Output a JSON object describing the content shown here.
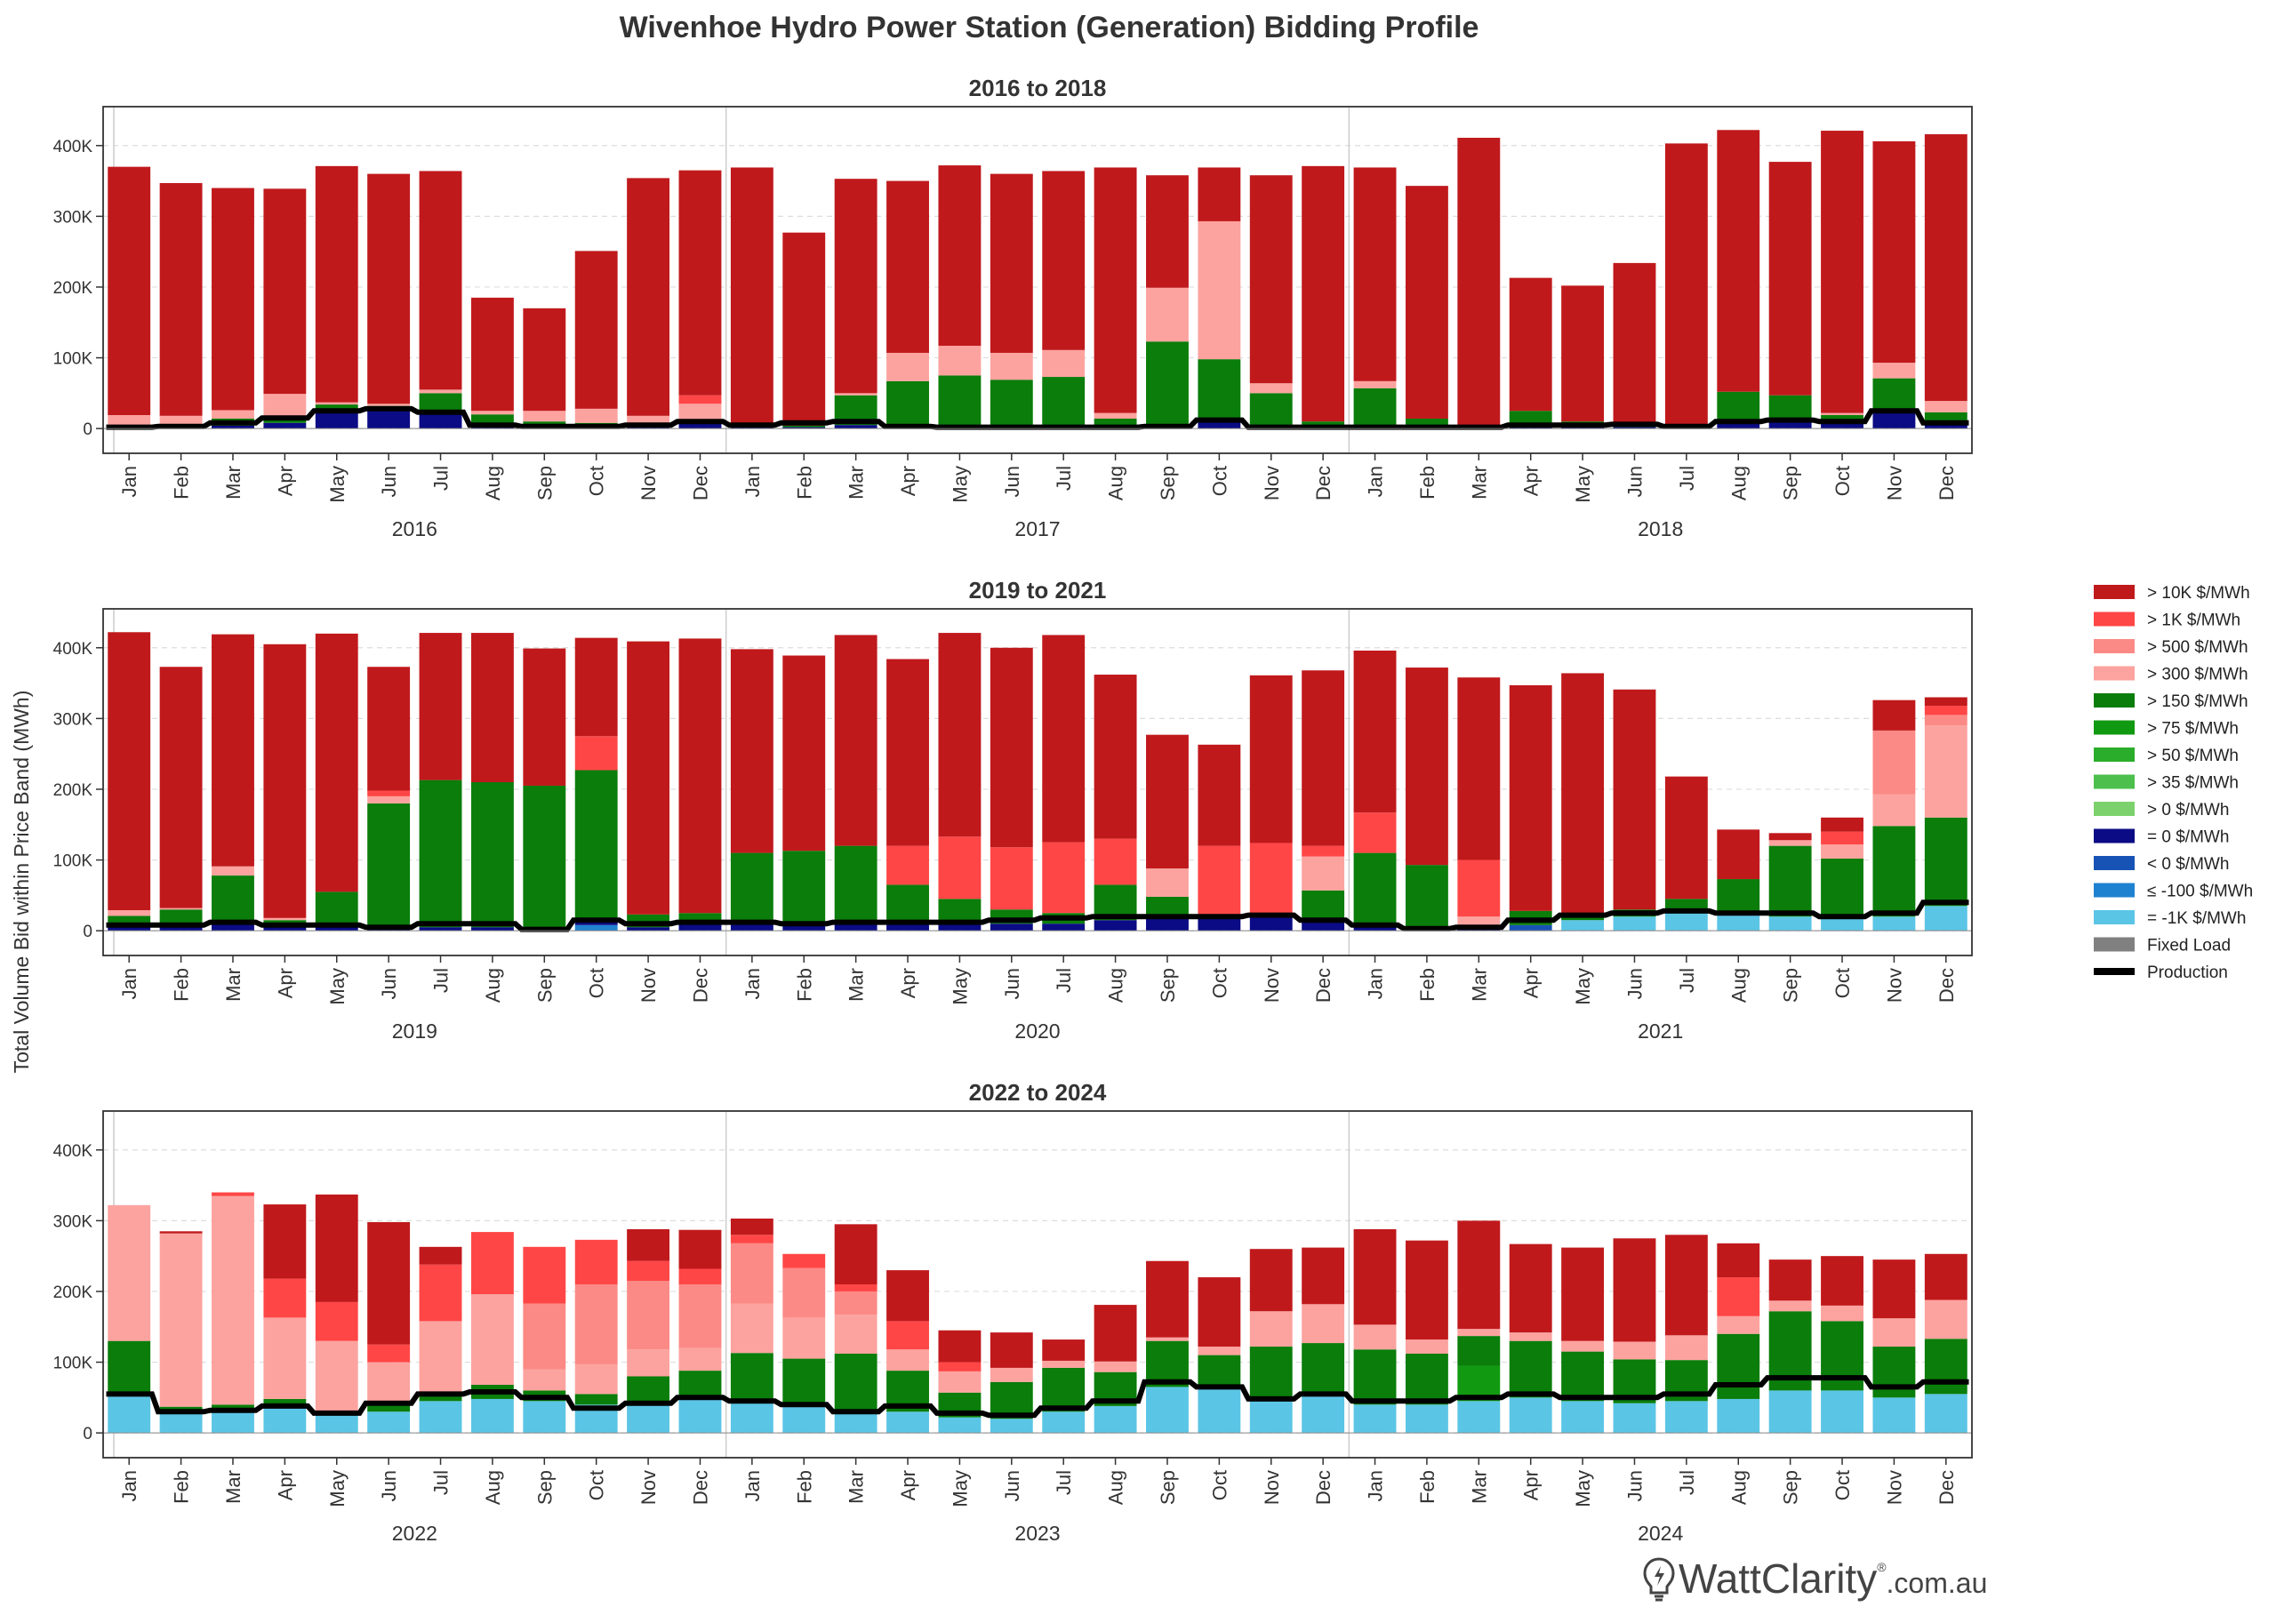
{
  "title": "Wivenhoe Hydro Power Station (Generation) Bidding Profile",
  "ylabel": "Total Volume Bid within Price Band (MWh)",
  "months": [
    "Jan",
    "Feb",
    "Mar",
    "Apr",
    "May",
    "Jun",
    "Jul",
    "Aug",
    "Sep",
    "Oct",
    "Nov",
    "Dec"
  ],
  "yticks": [
    "0",
    "100K",
    "200K",
    "300K",
    "400K"
  ],
  "legend": [
    {
      "label": "> 10K $/MWh",
      "color": "#c0191c"
    },
    {
      "label": "> 1K $/MWh",
      "color": "#ff4646"
    },
    {
      "label": "> 500 $/MWh",
      "color": "#fb8a86"
    },
    {
      "label": "> 300 $/MWh",
      "color": "#fca39f"
    },
    {
      "label": "> 150 $/MWh",
      "color": "#0a7d0a"
    },
    {
      "label": "> 75 $/MWh",
      "color": "#119911"
    },
    {
      "label": "> 50 $/MWh",
      "color": "#2aad2a"
    },
    {
      "label": "> 35 $/MWh",
      "color": "#4cbf4c"
    },
    {
      "label": "> 0 $/MWh",
      "color": "#7dd16d"
    },
    {
      "label": "= 0 $/MWh",
      "color": "#0b0b85"
    },
    {
      "label": "< 0 $/MWh",
      "color": "#1753b5"
    },
    {
      "label": "≤ -100 $/MWh",
      "color": "#1f82d0"
    },
    {
      "label": "= -1K $/MWh",
      "color": "#5bc5e5"
    },
    {
      "label": "Fixed Load",
      "color": "#808080"
    },
    {
      "label": "Production",
      "color": "#000000"
    }
  ],
  "brand": {
    "name": "WattClarity",
    "suffix": ".com.au",
    "reg": "®"
  },
  "chart_data": [
    {
      "type": "bar",
      "title": "2016 to 2018",
      "years": [
        "2016",
        "2017",
        "2018"
      ],
      "ylim": [
        -35000,
        455000
      ],
      "series_order": [
        "neg1k",
        "le100",
        "lt0",
        "eq0",
        "gt0",
        "gt35",
        "gt50",
        "gt75",
        "gt150",
        "gt300",
        "gt500",
        "gt1k",
        "gt10k"
      ],
      "bars": [
        {
          "eq0": 2000,
          "gt150": 3000,
          "gt300": 14000,
          "gt10k": 351000
        },
        {
          "eq0": 2000,
          "gt150": 3000,
          "gt300": 13000,
          "gt10k": 329000
        },
        {
          "eq0": 4000,
          "gt150": 10000,
          "gt300": 12000,
          "gt10k": 314000
        },
        {
          "eq0": 8000,
          "gt150": 8000,
          "gt300": 33000,
          "gt10k": 290000
        },
        {
          "eq0": 28000,
          "gt150": 6000,
          "gt300": 3000,
          "gt10k": 334000
        },
        {
          "eq0": 30000,
          "gt150": 2000,
          "gt300": 3000,
          "gt10k": 325000
        },
        {
          "eq0": 20000,
          "gt150": 30000,
          "gt300": 5000,
          "gt10k": 309000
        },
        {
          "eq0": 3000,
          "gt150": 17000,
          "gt300": 5000,
          "gt10k": 160000
        },
        {
          "eq0": 3000,
          "gt150": 7000,
          "gt300": 15000,
          "gt10k": 145000
        },
        {
          "eq0": 3000,
          "gt150": 5000,
          "gt300": 20000,
          "gt10k": 223000
        },
        {
          "eq0": 3000,
          "gt150": 5000,
          "gt300": 10000,
          "gt10k": 336000
        },
        {
          "eq0": 8000,
          "gt150": 5000,
          "gt300": 22000,
          "gt1k": 12000,
          "gt10k": 318000
        },
        {
          "eq0": 2000,
          "gt150": 2000,
          "gt10k": 365000
        },
        {
          "eq0": 2000,
          "gt150": 2000,
          "gt10k": 273000
        },
        {
          "eq0": 5000,
          "gt150": 42000,
          "gt300": 3000,
          "gt10k": 303000
        },
        {
          "eq0": 2000,
          "gt150": 65000,
          "gt300": 40000,
          "gt10k": 243000
        },
        {
          "eq0": 2000,
          "gt150": 73000,
          "gt300": 42000,
          "gt10k": 255000
        },
        {
          "eq0": 2000,
          "gt150": 67000,
          "gt300": 38000,
          "gt10k": 253000
        },
        {
          "eq0": 2000,
          "gt150": 71000,
          "gt300": 38000,
          "gt10k": 253000
        },
        {
          "eq0": 2000,
          "gt150": 12000,
          "gt300": 8000,
          "gt10k": 347000
        },
        {
          "eq0": 2000,
          "gt150": 121000,
          "gt300": 76000,
          "gt10k": 159000
        },
        {
          "eq0": 12000,
          "gt150": 86000,
          "gt300": 195000,
          "gt10k": 76000
        },
        {
          "eq0": 2000,
          "gt150": 48000,
          "gt300": 14000,
          "gt10k": 294000
        },
        {
          "eq0": 2000,
          "gt150": 8000,
          "gt10k": 361000
        },
        {
          "eq0": 2000,
          "gt150": 55000,
          "gt300": 10000,
          "gt10k": 302000
        },
        {
          "eq0": 2000,
          "gt150": 12000,
          "gt10k": 329000
        },
        {
          "eq0": 2000,
          "gt10k": 409000
        },
        {
          "eq0": 5000,
          "gt150": 20000,
          "gt10k": 188000
        },
        {
          "eq0": 2000,
          "gt150": 8000,
          "gt10k": 192000
        },
        {
          "eq0": 2000,
          "gt150": 5000,
          "gt10k": 227000
        },
        {
          "eq0": 2000,
          "gt10k": 401000
        },
        {
          "eq0": 10000,
          "gt150": 42000,
          "gt10k": 370000
        },
        {
          "eq0": 10000,
          "gt150": 37000,
          "gt10k": 330000
        },
        {
          "eq0": 12000,
          "gt150": 7000,
          "gt300": 3000,
          "gt10k": 399000
        },
        {
          "eq0": 25000,
          "gt150": 46000,
          "gt300": 22000,
          "gt10k": 313000
        },
        {
          "eq0": 8000,
          "gt150": 15000,
          "gt300": 16000,
          "gt10k": 377000
        }
      ],
      "production": [
        2000,
        3000,
        8000,
        15000,
        25000,
        28000,
        23000,
        5000,
        3000,
        3000,
        5000,
        10000,
        5000,
        8000,
        10000,
        3000,
        2000,
        2000,
        2000,
        2000,
        3000,
        12000,
        2000,
        2000,
        2000,
        2000,
        2000,
        5000,
        5000,
        6000,
        3000,
        10000,
        12000,
        10000,
        25000,
        8000
      ]
    },
    {
      "type": "bar",
      "title": "2019 to 2021",
      "years": [
        "2019",
        "2020",
        "2021"
      ],
      "ylim": [
        -35000,
        455000
      ],
      "series_order": [
        "neg1k",
        "le100",
        "lt0",
        "eq0",
        "gt0",
        "gt35",
        "gt50",
        "gt75",
        "gt150",
        "gt300",
        "gt500",
        "gt1k",
        "gt10k"
      ],
      "bars": [
        {
          "eq0": 5000,
          "gt150": 16000,
          "gt300": 8000,
          "gt10k": 393000
        },
        {
          "eq0": 5000,
          "gt150": 25000,
          "gt300": 2000,
          "gt10k": 341000
        },
        {
          "eq0": 10000,
          "gt150": 68000,
          "gt300": 13000,
          "gt10k": 328000
        },
        {
          "eq0": 5000,
          "gt150": 10000,
          "gt300": 3000,
          "gt10k": 387000
        },
        {
          "eq0": 5000,
          "gt150": 50000,
          "gt10k": 365000
        },
        {
          "eq0": 5000,
          "gt150": 175000,
          "gt300": 10000,
          "gt1k": 8000,
          "gt10k": 175000
        },
        {
          "eq0": 5000,
          "gt150": 208000,
          "gt10k": 208000
        },
        {
          "eq0": 5000,
          "gt150": 205000,
          "gt10k": 211000
        },
        {
          "eq0": 2000,
          "gt150": 203000,
          "gt10k": 194000
        },
        {
          "le100": 8000,
          "eq0": 4000,
          "gt150": 215000,
          "gt1k": 48000,
          "gt10k": 139000
        },
        {
          "eq0": 5000,
          "gt150": 18000,
          "gt10k": 386000
        },
        {
          "eq0": 10000,
          "gt150": 15000,
          "gt10k": 388000
        },
        {
          "eq0": 10000,
          "gt150": 100000,
          "gt10k": 288000
        },
        {
          "eq0": 8000,
          "gt150": 105000,
          "gt10k": 276000
        },
        {
          "eq0": 10000,
          "gt150": 110000,
          "gt10k": 298000
        },
        {
          "eq0": 10000,
          "gt150": 55000,
          "gt1k": 55000,
          "gt10k": 264000
        },
        {
          "eq0": 10000,
          "gt150": 35000,
          "gt1k": 88000,
          "gt10k": 288000
        },
        {
          "eq0": 10000,
          "gt150": 20000,
          "gt1k": 88000,
          "gt10k": 282000
        },
        {
          "eq0": 10000,
          "gt150": 15000,
          "gt1k": 100000,
          "gt10k": 293000
        },
        {
          "eq0": 15000,
          "gt150": 50000,
          "gt1k": 65000,
          "gt10k": 232000
        },
        {
          "eq0": 20000,
          "gt150": 28000,
          "gt300": 40000,
          "gt10k": 189000
        },
        {
          "eq0": 20000,
          "gt1k": 100000,
          "gt10k": 143000
        },
        {
          "eq0": 20000,
          "gt1k": 104000,
          "gt10k": 237000
        },
        {
          "eq0": 15000,
          "gt150": 42000,
          "gt300": 48000,
          "gt1k": 15000,
          "gt10k": 248000
        },
        {
          "eq0": 10000,
          "gt150": 100000,
          "gt1k": 57000,
          "gt10k": 229000
        },
        {
          "eq0": 5000,
          "gt150": 88000,
          "gt10k": 279000
        },
        {
          "eq0": 5000,
          "gt300": 15000,
          "gt1k": 80000,
          "gt10k": 258000
        },
        {
          "lt0": 8000,
          "gt150": 20000,
          "gt10k": 319000
        },
        {
          "neg1k": 15000,
          "gt150": 10000,
          "gt10k": 339000
        },
        {
          "neg1k": 20000,
          "gt150": 10000,
          "gt10k": 311000
        },
        {
          "neg1k": 25000,
          "gt150": 20000,
          "gt10k": 173000
        },
        {
          "neg1k": 25000,
          "gt150": 48000,
          "gt10k": 70000
        },
        {
          "neg1k": 20000,
          "gt150": 100000,
          "gt300": 8000,
          "gt10k": 10000
        },
        {
          "neg1k": 20000,
          "gt150": 82000,
          "gt300": 20000,
          "gt1k": 18000,
          "gt10k": 20000
        },
        {
          "neg1k": 20000,
          "gt150": 128000,
          "gt300": 45000,
          "gt500": 90000,
          "gt10k": 43000
        },
        {
          "neg1k": 35000,
          "gt150": 125000,
          "gt300": 130000,
          "gt500": 15000,
          "gt1k": 13000,
          "gt10k": 12000
        }
      ],
      "production": [
        8000,
        8000,
        12000,
        8000,
        8000,
        5000,
        10000,
        10000,
        2000,
        15000,
        10000,
        12000,
        12000,
        10000,
        12000,
        12000,
        12000,
        15000,
        18000,
        20000,
        20000,
        20000,
        22000,
        15000,
        8000,
        3000,
        5000,
        15000,
        22000,
        25000,
        28000,
        25000,
        25000,
        20000,
        25000,
        40000
      ]
    },
    {
      "type": "bar",
      "title": "2022 to 2024",
      "years": [
        "2022",
        "2023",
        "2024"
      ],
      "ylim": [
        -35000,
        455000
      ],
      "series_order": [
        "neg1k",
        "le100",
        "lt0",
        "eq0",
        "gt0",
        "gt35",
        "gt50",
        "gt75",
        "gt150",
        "gt300",
        "gt500",
        "gt1k",
        "gt10k"
      ],
      "bars": [
        {
          "neg1k": 55000,
          "gt150": 75000,
          "gt300": 192000
        },
        {
          "neg1k": 32000,
          "gt150": 5000,
          "gt300": 245000,
          "gt10k": 3000
        },
        {
          "neg1k": 30000,
          "gt150": 10000,
          "gt300": 295000,
          "gt1k": 5000
        },
        {
          "neg1k": 38000,
          "gt150": 10000,
          "gt300": 115000,
          "gt1k": 55000,
          "gt10k": 105000
        },
        {
          "neg1k": 25000,
          "gt150": 5000,
          "gt300": 100000,
          "gt1k": 55000,
          "gt10k": 152000
        },
        {
          "neg1k": 30000,
          "gt150": 10000,
          "gt300": 60000,
          "gt1k": 25000,
          "gt10k": 173000
        },
        {
          "neg1k": 45000,
          "gt150": 10000,
          "gt300": 103000,
          "gt1k": 80000,
          "gt10k": 25000
        },
        {
          "neg1k": 48000,
          "gt150": 20000,
          "gt300": 128000,
          "gt1k": 88000
        },
        {
          "neg1k": 45000,
          "gt150": 15000,
          "gt300": 30000,
          "gt500": 93000,
          "gt1k": 80000
        },
        {
          "neg1k": 40000,
          "gt150": 15000,
          "gt300": 42000,
          "gt500": 113000,
          "gt1k": 63000
        },
        {
          "neg1k": 40000,
          "gt150": 40000,
          "gt300": 38000,
          "gt500": 97000,
          "gt1k": 28000,
          "gt10k": 45000
        },
        {
          "neg1k": 50000,
          "gt150": 38000,
          "gt300": 32000,
          "gt500": 90000,
          "gt1k": 22000,
          "gt10k": 55000
        },
        {
          "neg1k": 45000,
          "gt150": 68000,
          "gt300": 70000,
          "gt500": 85000,
          "gt1k": 12000,
          "gt10k": 23000
        },
        {
          "neg1k": 40000,
          "gt150": 65000,
          "gt300": 58000,
          "gt500": 70000,
          "gt1k": 20000,
          "gt10k": 0
        },
        {
          "neg1k": 30000,
          "gt150": 82000,
          "gt300": 55000,
          "gt500": 33000,
          "gt1k": 10000,
          "gt10k": 85000
        },
        {
          "neg1k": 30000,
          "gt150": 58000,
          "gt300": 30000,
          "gt1k": 40000,
          "gt10k": 72000
        },
        {
          "neg1k": 22000,
          "gt150": 35000,
          "gt300": 30000,
          "gt1k": 13000,
          "gt10k": 45000
        },
        {
          "neg1k": 20000,
          "gt150": 52000,
          "gt300": 20000,
          "gt10k": 50000
        },
        {
          "neg1k": 30000,
          "gt150": 62000,
          "gt300": 10000,
          "gt10k": 30000
        },
        {
          "neg1k": 38000,
          "gt150": 48000,
          "gt300": 15000,
          "gt10k": 80000
        },
        {
          "neg1k": 65000,
          "gt150": 65000,
          "gt300": 5000,
          "gt10k": 108000
        },
        {
          "neg1k": 65000,
          "gt150": 45000,
          "gt300": 12000,
          "gt10k": 98000
        },
        {
          "neg1k": 50000,
          "gt150": 72000,
          "gt300": 50000,
          "gt10k": 88000
        },
        {
          "neg1k": 55000,
          "gt150": 72000,
          "gt300": 55000,
          "gt10k": 80000
        },
        {
          "neg1k": 40000,
          "gt150": 78000,
          "gt300": 35000,
          "gt10k": 135000
        },
        {
          "neg1k": 40000,
          "gt150": 72000,
          "gt300": 20000,
          "gt10k": 140000
        },
        {
          "neg1k": 45000,
          "gt75": 50000,
          "gt150": 42000,
          "gt300": 10000,
          "gt10k": 153000
        },
        {
          "neg1k": 50000,
          "gt150": 80000,
          "gt300": 12000,
          "gt10k": 125000
        },
        {
          "neg1k": 45000,
          "gt150": 70000,
          "gt300": 15000,
          "gt10k": 132000
        },
        {
          "neg1k": 42000,
          "gt150": 62000,
          "gt300": 25000,
          "gt10k": 146000
        },
        {
          "neg1k": 45000,
          "gt150": 58000,
          "gt300": 35000,
          "gt10k": 142000
        },
        {
          "neg1k": 48000,
          "gt150": 92000,
          "gt300": 25000,
          "gt1k": 55000,
          "gt10k": 48000
        },
        {
          "neg1k": 60000,
          "gt150": 112000,
          "gt300": 15000,
          "gt10k": 58000
        },
        {
          "neg1k": 60000,
          "gt150": 98000,
          "gt300": 22000,
          "gt10k": 70000
        },
        {
          "neg1k": 50000,
          "gt150": 72000,
          "gt300": 40000,
          "gt10k": 83000
        },
        {
          "neg1k": 55000,
          "gt150": 78000,
          "gt300": 55000,
          "gt10k": 65000
        }
      ],
      "production": [
        55000,
        30000,
        32000,
        38000,
        28000,
        42000,
        55000,
        58000,
        50000,
        35000,
        42000,
        50000,
        45000,
        40000,
        30000,
        38000,
        28000,
        25000,
        35000,
        45000,
        72000,
        65000,
        48000,
        55000,
        45000,
        45000,
        50000,
        55000,
        50000,
        50000,
        55000,
        68000,
        78000,
        78000,
        65000,
        72000
      ]
    }
  ]
}
